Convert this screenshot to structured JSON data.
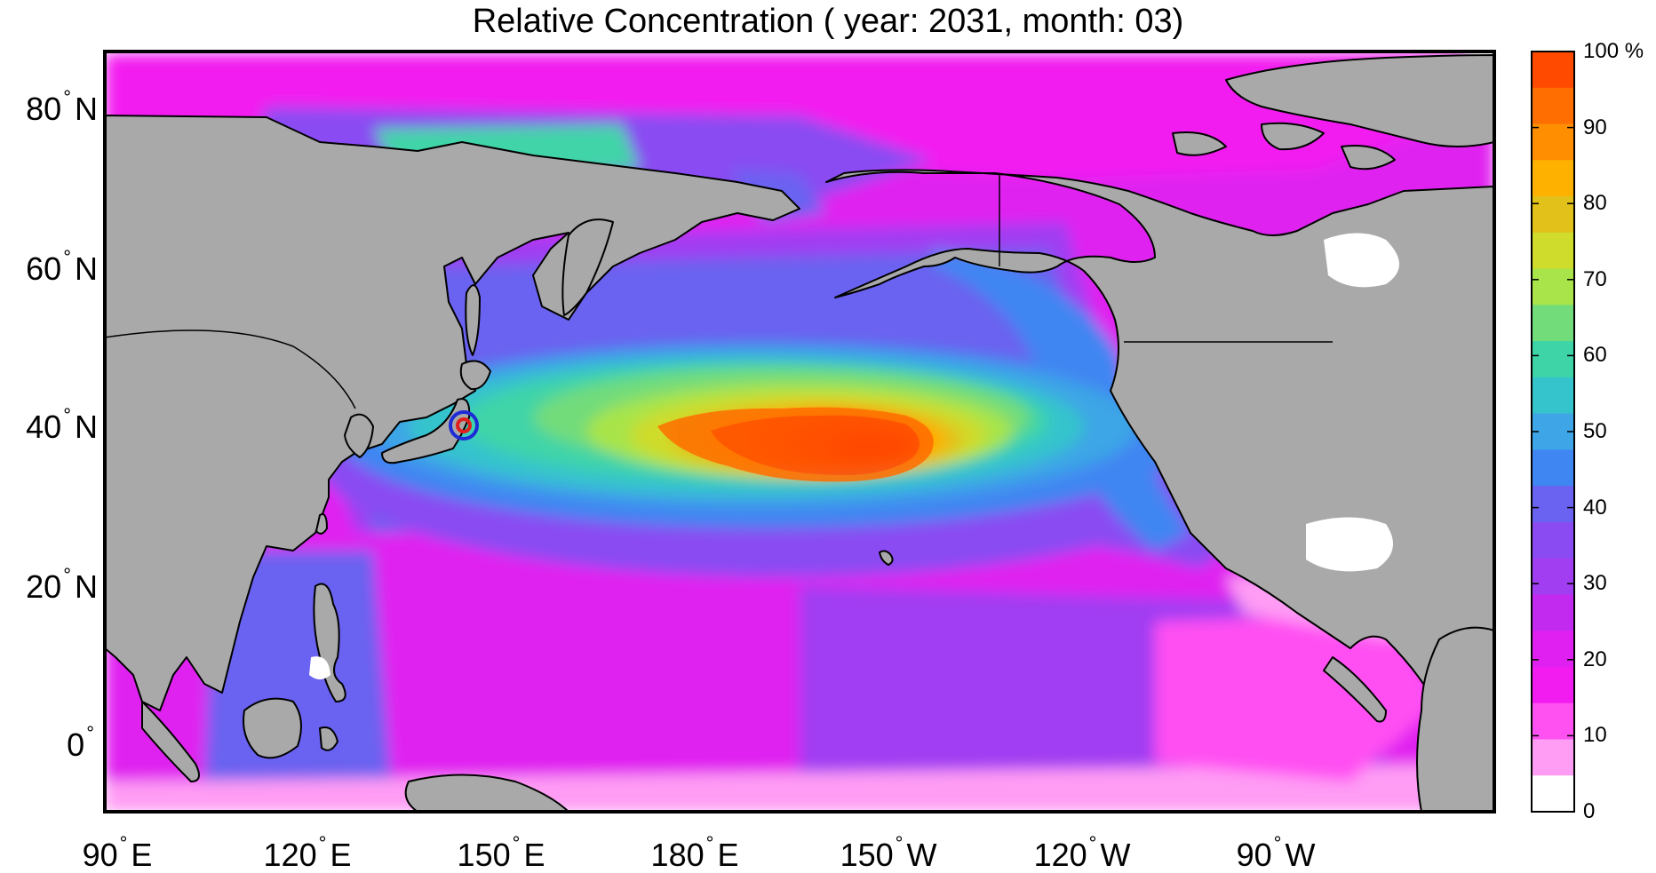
{
  "title": "Relative Concentration ( year: 2031, month: 03)",
  "map": {
    "land_color": "#a9a9a9",
    "coast_color": "#000000",
    "lat_labels": [
      {
        "deg": "80",
        "hemi": "N"
      },
      {
        "deg": "60",
        "hemi": "N"
      },
      {
        "deg": "40",
        "hemi": "N"
      },
      {
        "deg": "20",
        "hemi": "N"
      },
      {
        "deg": "0",
        "hemi": ""
      }
    ],
    "lon_labels": [
      {
        "deg": "90",
        "hemi": "E"
      },
      {
        "deg": "120",
        "hemi": "E"
      },
      {
        "deg": "150",
        "hemi": "E"
      },
      {
        "deg": "180",
        "hemi": "E"
      },
      {
        "deg": "150",
        "hemi": "W"
      },
      {
        "deg": "120",
        "hemi": "W"
      },
      {
        "deg": "90",
        "hemi": "W"
      }
    ],
    "source_marker": {
      "lat": 37.4,
      "lon": 141.0,
      "inner_color": "#e0201c",
      "outer_color": "#1c2bd6"
    }
  },
  "colorbar": {
    "labels": [
      "100 %",
      "90",
      "80",
      "70",
      "60",
      "50",
      "40",
      "30",
      "20",
      "10",
      "0"
    ],
    "colors_top_to_bottom": [
      "#ff4a00",
      "#ff6e00",
      "#ff8f00",
      "#ffb100",
      "#e2c21a",
      "#cfdc2c",
      "#a8e44a",
      "#72dc7a",
      "#3fd4a8",
      "#35c4cc",
      "#3ea6e6",
      "#3f86f2",
      "#6a62f0",
      "#8a4cf2",
      "#a13ef2",
      "#c22af0",
      "#e020f0",
      "#f31cf0",
      "#ff50f2",
      "#ff9cf4",
      "#ffffff"
    ]
  }
}
